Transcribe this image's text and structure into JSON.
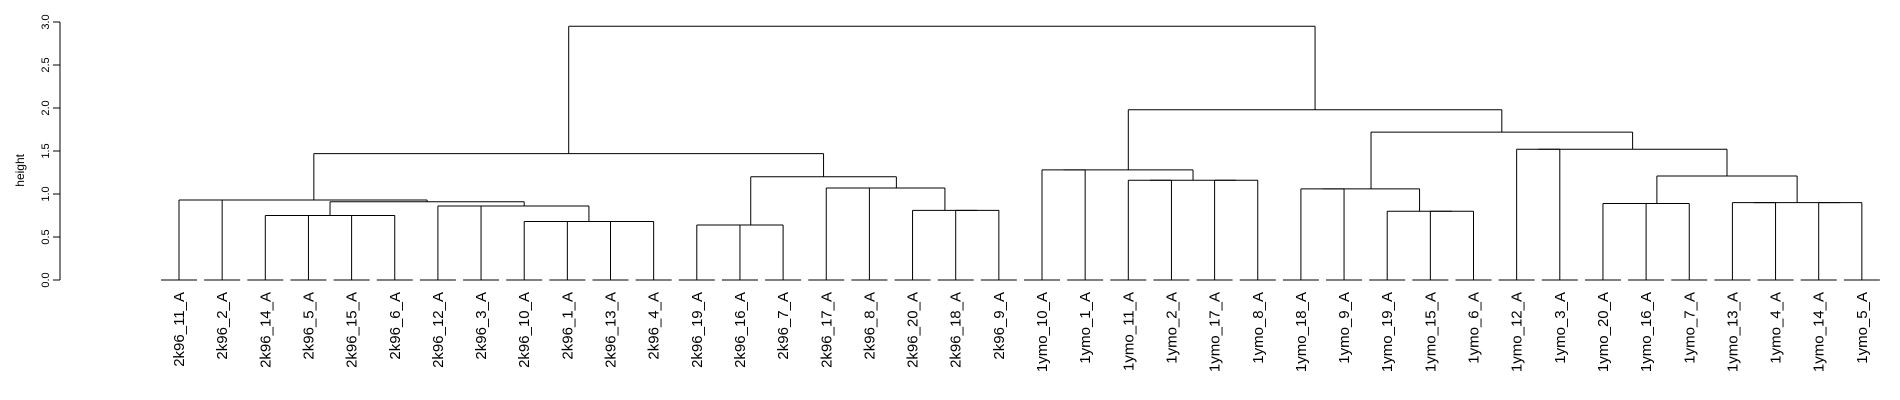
{
  "chart_data": {
    "type": "dendrogram",
    "ylabel": "height",
    "ylim": [
      0,
      3.0
    ],
    "yticks": [
      "0.0",
      "0.5",
      "1.0",
      "1.5",
      "2.0",
      "2.5",
      "3.0"
    ],
    "leaves": [
      "2k96_11_A",
      "2k96_2_A",
      "2k96_14_A",
      "2k96_5_A",
      "2k96_15_A",
      "2k96_6_A",
      "2k96_12_A",
      "2k96_3_A",
      "2k96_10_A",
      "2k96_1_A",
      "2k96_13_A",
      "2k96_4_A",
      "2k96_19_A",
      "2k96_16_A",
      "2k96_7_A",
      "2k96_17_A",
      "2k96_8_A",
      "2k96_20_A",
      "2k96_18_A",
      "2k96_9_A",
      "1ymo_10_A",
      "1ymo_1_A",
      "1ymo_11_A",
      "1ymo_2_A",
      "1ymo_17_A",
      "1ymo_8_A",
      "1ymo_18_A",
      "1ymo_9_A",
      "1ymo_19_A",
      "1ymo_15_A",
      "1ymo_6_A",
      "1ymo_12_A",
      "1ymo_3_A",
      "1ymo_20_A",
      "1ymo_16_A",
      "1ymo_7_A",
      "1ymo_13_A",
      "1ymo_4_A",
      "1ymo_14_A",
      "1ymo_5_A"
    ],
    "merges": [
      {
        "id": "m1",
        "left": "L2",
        "right": "L3",
        "height": 0.75
      },
      {
        "id": "m2",
        "left": "L4",
        "right": "L5",
        "height": 0.75
      },
      {
        "id": "m3",
        "left": "m1",
        "right": "m2",
        "height": 0.75
      },
      {
        "id": "m4",
        "left": "L6",
        "right": "L7",
        "height": 0.86
      },
      {
        "id": "m5",
        "left": "L10",
        "right": "L11",
        "height": 0.68
      },
      {
        "id": "m6",
        "left": "L8",
        "right": "L9",
        "height": 0.68
      },
      {
        "id": "m7",
        "left": "m6",
        "right": "m5",
        "height": 0.68
      },
      {
        "id": "m8",
        "left": "m4",
        "right": "m7",
        "height": 0.86
      },
      {
        "id": "m9",
        "left": "m3",
        "right": "m8",
        "height": 0.91
      },
      {
        "id": "m10",
        "left": "L0",
        "right": "L1",
        "height": 0.93
      },
      {
        "id": "m11",
        "left": "m10",
        "right": "m9",
        "height": 0.93
      },
      {
        "id": "m12",
        "left": "L12",
        "right": "L13",
        "height": 0.64
      },
      {
        "id": "m13",
        "left": "L14",
        "right": "m12",
        "height": 0.64
      },
      {
        "id": "m14",
        "left": "L18",
        "right": "L19",
        "height": 0.81
      },
      {
        "id": "m15",
        "left": "L17",
        "right": "m14",
        "height": 0.81
      },
      {
        "id": "m16",
        "left": "L15",
        "right": "L16",
        "height": 1.07
      },
      {
        "id": "m17",
        "left": "m16",
        "right": "m15",
        "height": 1.07
      },
      {
        "id": "m18",
        "left": "m13",
        "right": "m17",
        "height": 1.2
      },
      {
        "id": "m19",
        "left": "m11",
        "right": "m18",
        "height": 1.47
      },
      {
        "id": "m20",
        "left": "L20",
        "right": "L21",
        "height": 1.28
      },
      {
        "id": "m21",
        "left": "L22",
        "right": "L23",
        "height": 1.16
      },
      {
        "id": "m22",
        "left": "L24",
        "right": "L25",
        "height": 1.16
      },
      {
        "id": "m23",
        "left": "m21",
        "right": "m22",
        "height": 1.16
      },
      {
        "id": "m24",
        "left": "m20",
        "right": "m23",
        "height": 1.28
      },
      {
        "id": "m25",
        "left": "L26",
        "right": "L27",
        "height": 1.06
      },
      {
        "id": "m26",
        "left": "L29",
        "right": "L30",
        "height": 0.8
      },
      {
        "id": "m27",
        "left": "L28",
        "right": "m26",
        "height": 0.8
      },
      {
        "id": "m28",
        "left": "m25",
        "right": "m27",
        "height": 1.06
      },
      {
        "id": "m29",
        "left": "L31",
        "right": "L32",
        "height": 1.52
      },
      {
        "id": "m30",
        "left": "L33",
        "right": "L34",
        "height": 0.89
      },
      {
        "id": "m31",
        "left": "m30",
        "right": "L35",
        "height": 0.89
      },
      {
        "id": "m32",
        "left": "L36",
        "right": "L37",
        "height": 0.9
      },
      {
        "id": "m33",
        "left": "L38",
        "right": "L39",
        "height": 0.9
      },
      {
        "id": "m34",
        "left": "m32",
        "right": "m33",
        "height": 0.9
      },
      {
        "id": "m35",
        "left": "m31",
        "right": "m34",
        "height": 1.21
      },
      {
        "id": "m36",
        "left": "m29",
        "right": "m35",
        "height": 1.52
      },
      {
        "id": "m37",
        "left": "m28",
        "right": "m36",
        "height": 1.72
      },
      {
        "id": "m38",
        "left": "m24",
        "right": "m37",
        "height": 1.98
      },
      {
        "id": "m39",
        "left": "m19",
        "right": "m38",
        "height": 2.95
      }
    ]
  }
}
